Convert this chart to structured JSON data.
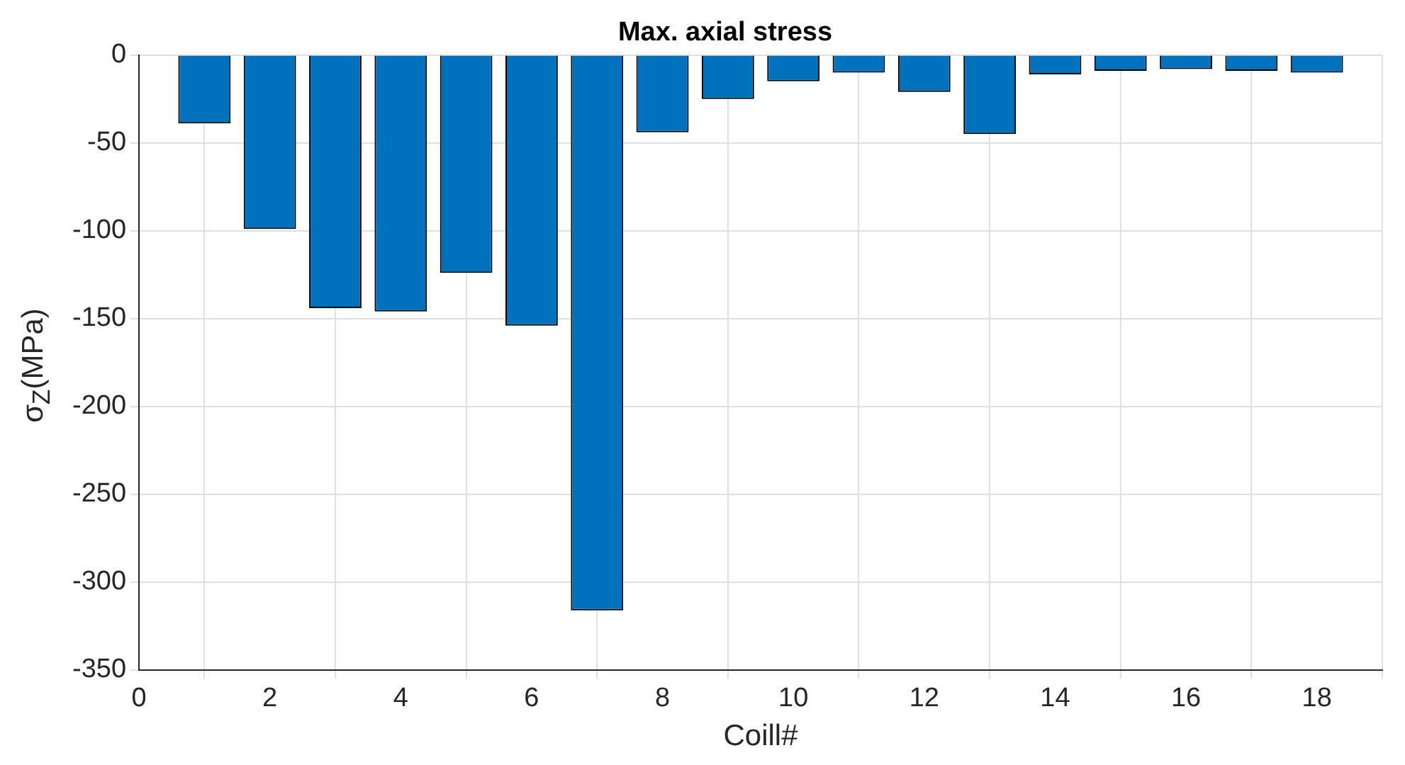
{
  "chart_data": {
    "type": "bar",
    "title": "Max. axial stress",
    "xlabel": "Coill#",
    "ylabel": "σ$_{Z}$(MPa)",
    "x": [
      1,
      2,
      3,
      4,
      5,
      6,
      7,
      8,
      9,
      10,
      11,
      12,
      13,
      14,
      15,
      16,
      17,
      18
    ],
    "values": [
      -39,
      -99,
      -144,
      -146,
      -124,
      -154,
      -316,
      -44,
      -25,
      -15,
      -10,
      -21,
      -45,
      -11,
      -9,
      -8,
      -9,
      -10
    ],
    "color": "#0072bd",
    "xlim": [
      0,
      19
    ],
    "xticks": [
      0,
      2,
      4,
      6,
      8,
      10,
      12,
      14,
      16,
      18
    ],
    "ylim": [
      -350,
      0
    ],
    "yticks": [
      -350,
      -300,
      -250,
      -200,
      -150,
      -100,
      -50,
      0
    ],
    "grid": true
  }
}
